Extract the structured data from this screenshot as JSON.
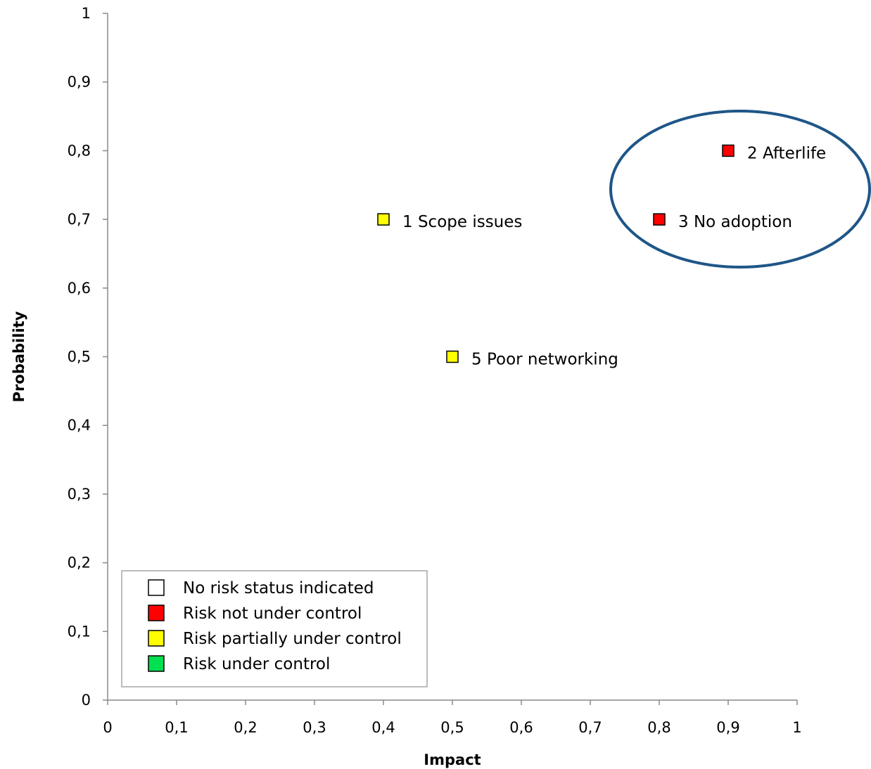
{
  "chart_data": {
    "type": "scatter",
    "xlabel": "Impact",
    "ylabel": "Probability",
    "xlim": [
      0,
      1
    ],
    "ylim": [
      0,
      1
    ],
    "x_ticks": [
      "0",
      "0,1",
      "0,2",
      "0,3",
      "0,4",
      "0,5",
      "0,6",
      "0,7",
      "0,8",
      "0,9",
      "1"
    ],
    "y_ticks": [
      "0",
      "0,1",
      "0,2",
      "0,3",
      "0,4",
      "0,5",
      "0,6",
      "0,7",
      "0,8",
      "0,9",
      "1"
    ],
    "grid": false,
    "points": [
      {
        "label": "2 Afterlife",
        "x": 0.9,
        "y": 0.8,
        "status": "Risk not under control"
      },
      {
        "label": "1 Scope issues",
        "x": 0.4,
        "y": 0.7,
        "status": "Risk partially under control"
      },
      {
        "label": "3 No adoption",
        "x": 0.8,
        "y": 0.7,
        "status": "Risk not under control"
      },
      {
        "label": "5 Poor networking",
        "x": 0.5,
        "y": 0.5,
        "status": "Risk partially under control"
      }
    ],
    "legend": {
      "placement": "bottom-left",
      "entries": [
        {
          "name": "No risk status indicated",
          "color": "#ffffff"
        },
        {
          "name": "Risk not under control",
          "color": "#ff0000"
        },
        {
          "name": "Risk partially under control",
          "color": "#ffff00"
        },
        {
          "name": "Risk under control",
          "color": "#00e050"
        }
      ]
    },
    "annotation": {
      "shape": "ellipse",
      "color": "#1f5688",
      "encloses": [
        "2 Afterlife",
        "3 No adoption"
      ]
    }
  }
}
